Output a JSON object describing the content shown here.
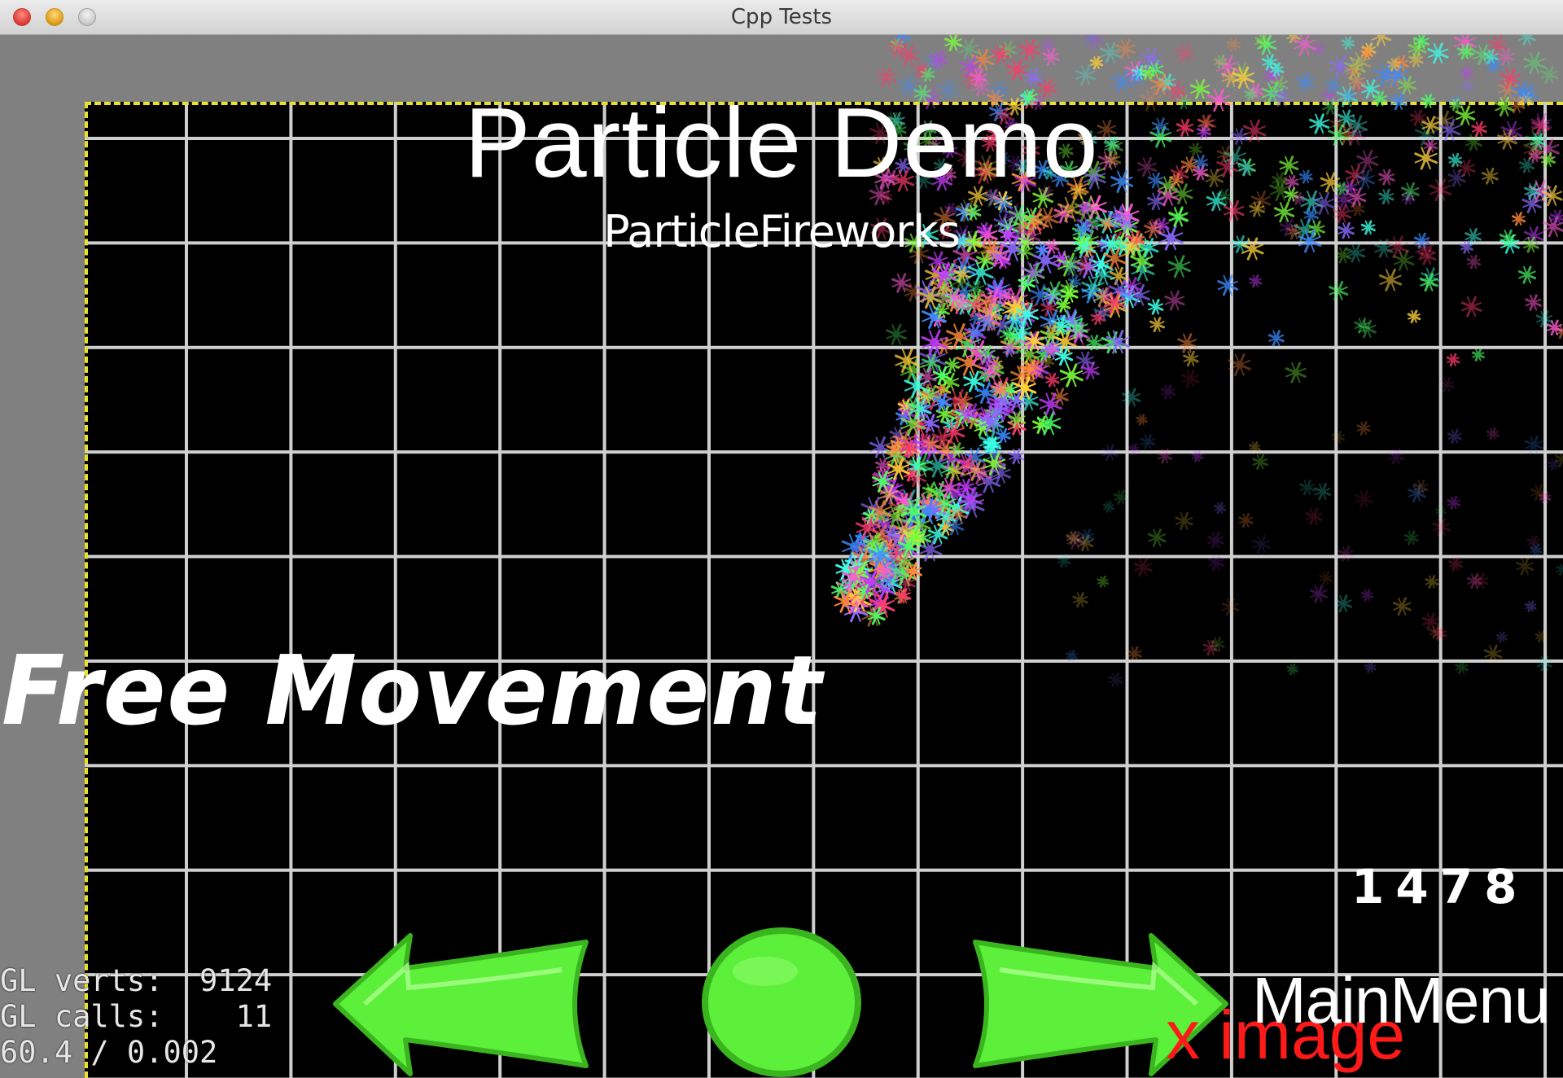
{
  "window": {
    "title": "Cpp Tests"
  },
  "scene": {
    "title": "Particle Demo",
    "subtitle": "ParticleFireworks",
    "mode_label": "Free Movement",
    "particle_count": "1478",
    "missing_image_text": "x image",
    "main_menu_label": "MainMenu"
  },
  "stats": {
    "lines": [
      "GL verts:  9124",
      "GL calls:    11",
      "60.4 / 0.002"
    ]
  },
  "controls": {
    "back_icon": "arrow-left-icon",
    "restart_icon": "circle-icon",
    "next_icon": "arrow-right-icon",
    "button_color": "#5cf03a"
  },
  "colors": {
    "grid_line": "#cfcfcf",
    "border_dash": "#e8e02a",
    "background": "#000000"
  }
}
